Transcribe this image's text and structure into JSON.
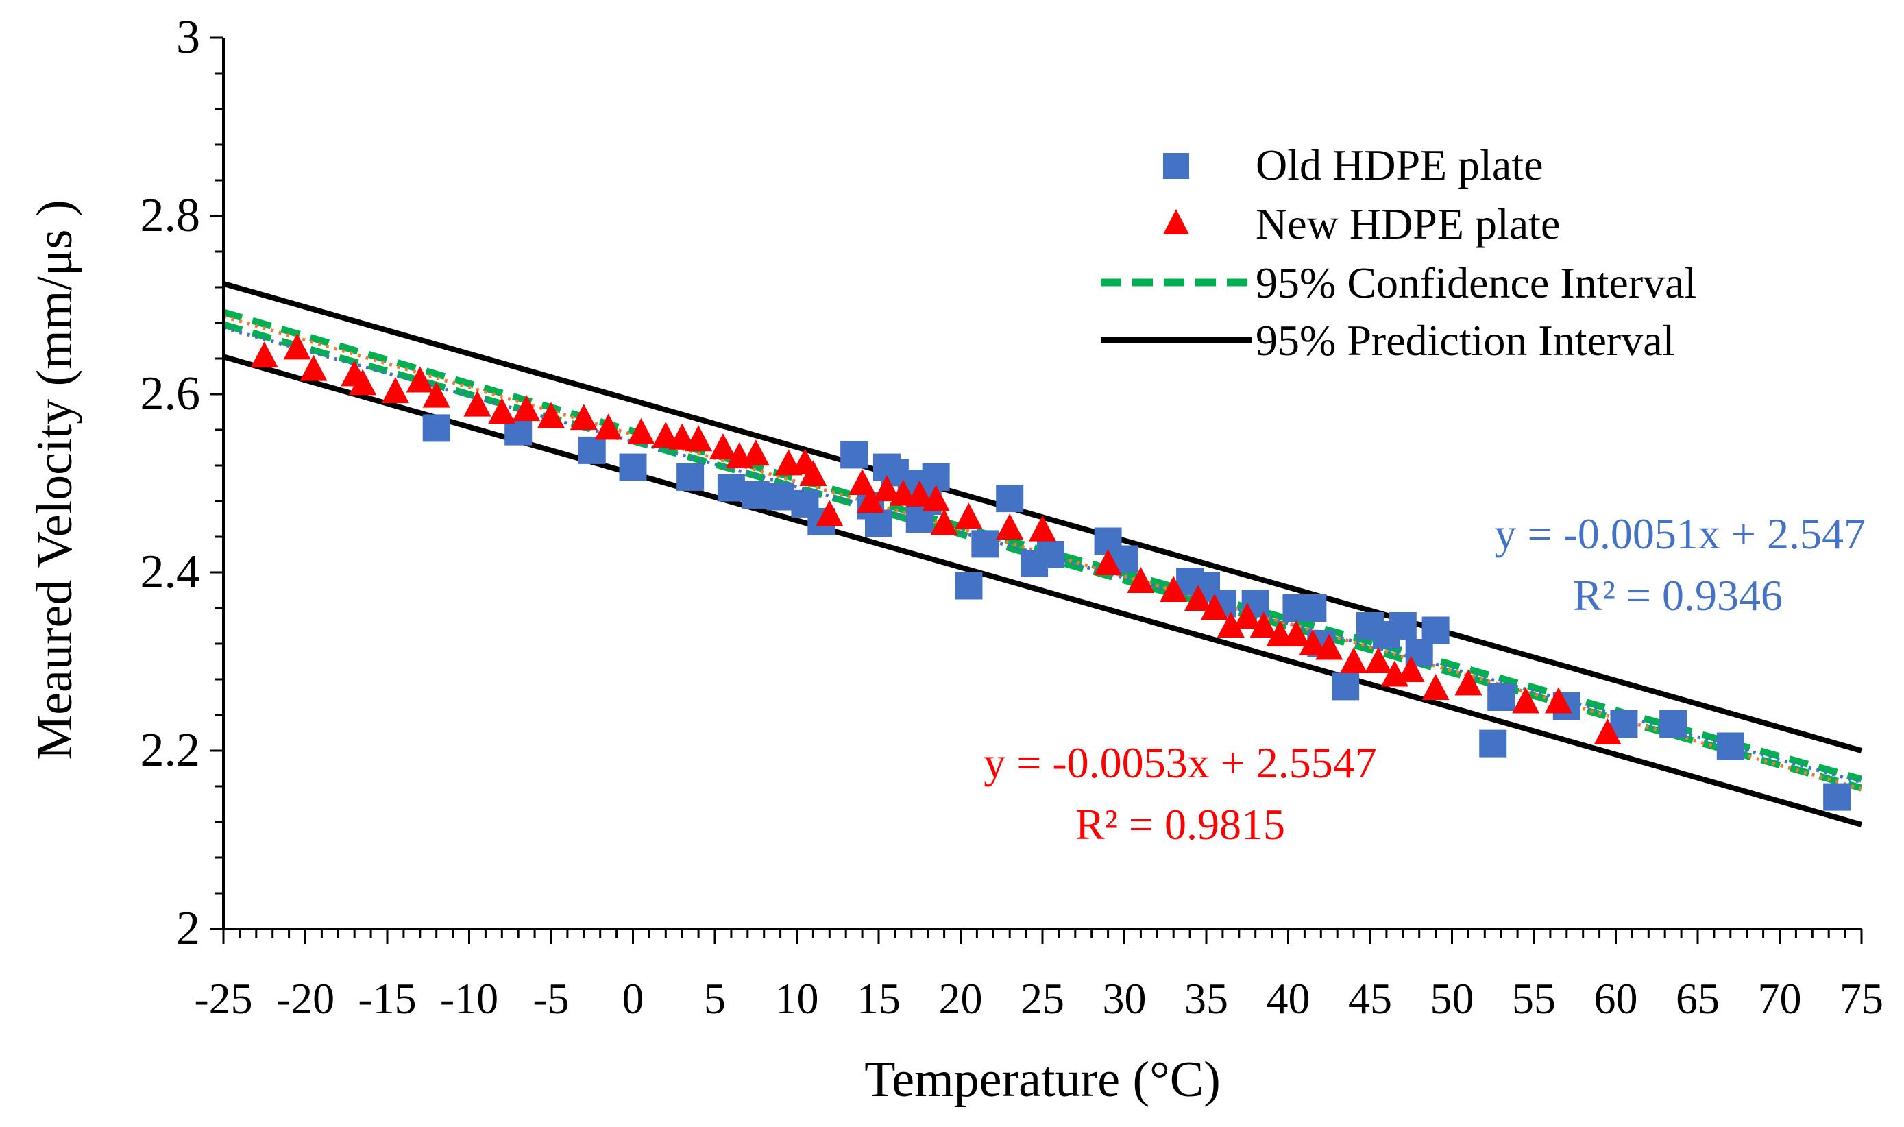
{
  "chart_data": {
    "type": "scatter",
    "xlabel": "Temperature (°C)",
    "ylabel": "Meaured Velocity (mm/μs )",
    "xlim": [
      -25,
      75
    ],
    "ylim": [
      2,
      3
    ],
    "x_ticks": [
      -25,
      -20,
      -15,
      -10,
      -5,
      0,
      5,
      10,
      15,
      20,
      25,
      30,
      35,
      40,
      45,
      50,
      55,
      60,
      65,
      70,
      75
    ],
    "y_ticks": [
      2,
      2.2,
      2.4,
      2.6,
      2.8,
      3
    ],
    "x_tick_labels": [
      "-25",
      "-20",
      "-15",
      "-10",
      "-5",
      "0",
      "5",
      "10",
      "15",
      "20",
      "25",
      "30",
      "35",
      "40",
      "45",
      "50",
      "55",
      "60",
      "65",
      "70",
      "75"
    ],
    "y_tick_labels": [
      "2",
      "2.2",
      "2.4",
      "2.6",
      "2.8",
      "3"
    ],
    "legend_position": "top-right",
    "colors": {
      "old": "#4472C4",
      "new": "#FF0000",
      "confidence": "#00B050",
      "prediction": "#000000",
      "old_trend": "#4472C4",
      "new_trend": "#ED7D31"
    },
    "series": [
      {
        "name": "Old HDPE plate",
        "marker": "square",
        "x": [
          -12,
          -7,
          -2.5,
          0,
          3.5,
          6,
          7.5,
          9,
          10.5,
          11.5,
          13.5,
          14.5,
          15,
          15.5,
          16,
          17,
          17.5,
          18,
          18.5,
          20.5,
          21.5,
          23,
          24.5,
          25.5,
          29,
          30,
          34,
          35,
          36,
          38,
          40.5,
          41.5,
          42,
          43.5,
          45,
          46,
          47,
          48,
          49,
          52.5,
          53,
          57,
          60.5,
          63.5,
          67,
          73.5
        ],
        "y": [
          2.562,
          2.558,
          2.537,
          2.518,
          2.507,
          2.495,
          2.487,
          2.485,
          2.477,
          2.457,
          2.532,
          2.475,
          2.455,
          2.518,
          2.512,
          2.5,
          2.46,
          2.48,
          2.507,
          2.385,
          2.432,
          2.483,
          2.41,
          2.42,
          2.435,
          2.415,
          2.39,
          2.385,
          2.365,
          2.365,
          2.36,
          2.36,
          2.32,
          2.272,
          2.34,
          2.33,
          2.34,
          2.31,
          2.335,
          2.208,
          2.26,
          2.25,
          2.23,
          2.23,
          2.205,
          2.148
        ]
      },
      {
        "name": "New HDPE plate",
        "marker": "triangle",
        "x": [
          -22.5,
          -20.5,
          -19.5,
          -17,
          -16.5,
          -14.5,
          -13,
          -12,
          -9.5,
          -8,
          -6.5,
          -5,
          -3,
          -1.5,
          0.5,
          2,
          3,
          4,
          5.5,
          6.5,
          7.5,
          9.5,
          10.5,
          11,
          12,
          14,
          14.5,
          15.5,
          16.5,
          17.5,
          18.5,
          19,
          20.5,
          23,
          25,
          29,
          31,
          33,
          34.5,
          35.5,
          36.5,
          37.5,
          38.5,
          39.5,
          40.5,
          41.5,
          42.5,
          44,
          45.5,
          46.5,
          47.5,
          49,
          51,
          54.5,
          56.5,
          59.5
        ],
        "y": [
          2.643,
          2.652,
          2.628,
          2.622,
          2.612,
          2.603,
          2.615,
          2.598,
          2.588,
          2.58,
          2.583,
          2.575,
          2.573,
          2.562,
          2.557,
          2.553,
          2.551,
          2.549,
          2.54,
          2.53,
          2.533,
          2.522,
          2.523,
          2.51,
          2.465,
          2.5,
          2.48,
          2.493,
          2.488,
          2.487,
          2.482,
          2.455,
          2.462,
          2.45,
          2.448,
          2.41,
          2.39,
          2.38,
          2.37,
          2.36,
          2.34,
          2.35,
          2.34,
          2.33,
          2.33,
          2.32,
          2.315,
          2.3,
          2.3,
          2.285,
          2.29,
          2.27,
          2.275,
          2.255,
          2.255,
          2.22
        ]
      }
    ],
    "intervals": {
      "confidence": {
        "name": "95% Confidence Interval",
        "upper": [
          [
            -25,
            2.692
          ],
          [
            25,
            2.425
          ],
          [
            75,
            2.168
          ]
        ],
        "lower": [
          [
            -25,
            2.678
          ],
          [
            25,
            2.417
          ],
          [
            75,
            2.158
          ]
        ]
      },
      "prediction": {
        "name": "95% Prediction Interval",
        "upper": [
          [
            -25,
            2.724
          ],
          [
            75,
            2.2
          ]
        ],
        "lower": [
          [
            -25,
            2.642
          ],
          [
            75,
            2.117
          ]
        ]
      }
    },
    "trendlines": [
      {
        "series": "Old HDPE plate",
        "slope": -0.0051,
        "intercept": 2.547
      },
      {
        "series": "New HDPE plate",
        "slope": -0.0053,
        "intercept": 2.5547
      }
    ],
    "annotations": {
      "old_eq": "y = -0.0051x + 2.547",
      "old_r2": "R² = 0.9346",
      "new_eq": "y = -0.0053x + 2.5547",
      "new_r2": "R² = 0.9815"
    }
  }
}
